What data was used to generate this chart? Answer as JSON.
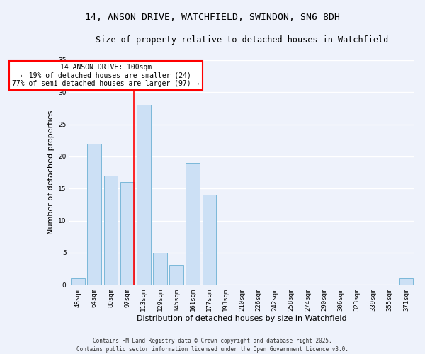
{
  "title": "14, ANSON DRIVE, WATCHFIELD, SWINDON, SN6 8DH",
  "subtitle": "Size of property relative to detached houses in Watchfield",
  "xlabel": "Distribution of detached houses by size in Watchfield",
  "ylabel": "Number of detached properties",
  "bar_labels": [
    "48sqm",
    "64sqm",
    "80sqm",
    "97sqm",
    "113sqm",
    "129sqm",
    "145sqm",
    "161sqm",
    "177sqm",
    "193sqm",
    "210sqm",
    "226sqm",
    "242sqm",
    "258sqm",
    "274sqm",
    "290sqm",
    "306sqm",
    "323sqm",
    "339sqm",
    "355sqm",
    "371sqm"
  ],
  "bar_values": [
    1,
    22,
    17,
    16,
    28,
    5,
    3,
    19,
    14,
    0,
    0,
    0,
    0,
    0,
    0,
    0,
    0,
    0,
    0,
    0,
    1
  ],
  "bar_color": "#cce0f5",
  "bar_edge_color": "#7ab8d9",
  "vline_bar_idx": 3,
  "vline_color": "red",
  "annotation_title": "14 ANSON DRIVE: 100sqm",
  "annotation_line1": "← 19% of detached houses are smaller (24)",
  "annotation_line2": "77% of semi-detached houses are larger (97) →",
  "annotation_box_color": "white",
  "annotation_box_edge_color": "red",
  "ylim": [
    0,
    35
  ],
  "yticks": [
    0,
    5,
    10,
    15,
    20,
    25,
    30,
    35
  ],
  "footer1": "Contains HM Land Registry data © Crown copyright and database right 2025.",
  "footer2": "Contains public sector information licensed under the Open Government Licence v3.0.",
  "bg_color": "#eef2fb",
  "grid_color": "white",
  "title_fontsize": 9.5,
  "subtitle_fontsize": 8.5,
  "xlabel_fontsize": 8,
  "ylabel_fontsize": 8,
  "tick_fontsize": 6.5,
  "annotation_fontsize": 7,
  "footer_fontsize": 5.5
}
